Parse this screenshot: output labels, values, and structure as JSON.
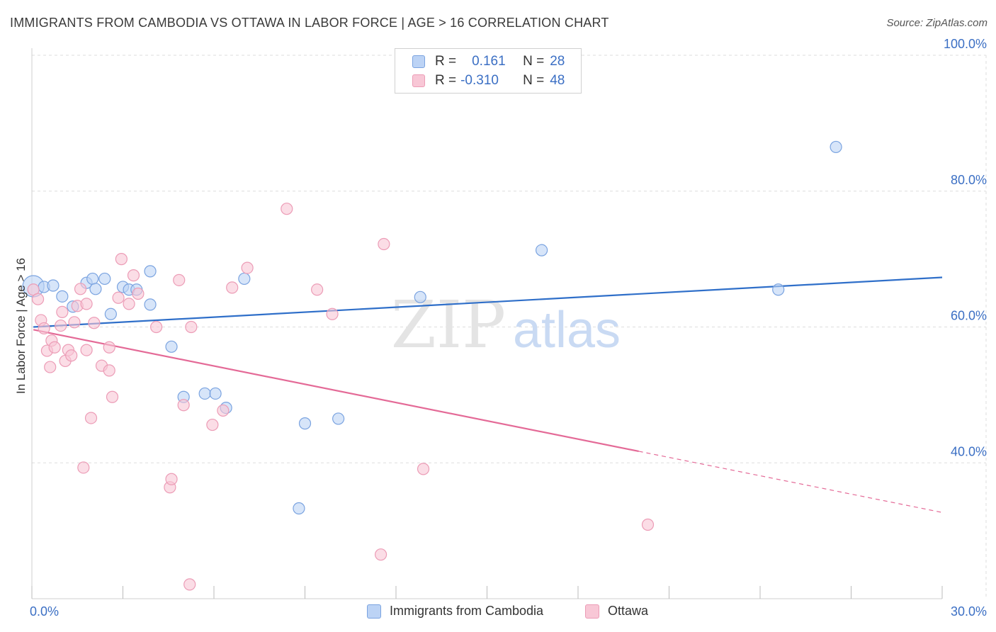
{
  "title": "IMMIGRANTS FROM CAMBODIA VS OTTAWA IN LABOR FORCE | AGE > 16 CORRELATION CHART",
  "source": "Source: ZipAtlas.com",
  "watermark": {
    "zip": "ZIP",
    "atlas": "atlas"
  },
  "legend": {
    "rows": [
      {
        "r_label": "R =",
        "r_value": "0.161",
        "n_label": "N =",
        "n_value": "28"
      },
      {
        "r_label": "R =",
        "r_value": "-0.310",
        "n_label": "N =",
        "n_value": "48"
      }
    ]
  },
  "colors": {
    "blue_fill": "#bcd3f5",
    "blue_stroke": "#7aa3e0",
    "blue_line": "#2f6fc9",
    "pink_fill": "#f8c7d6",
    "pink_stroke": "#ec9cb6",
    "pink_line": "#e46a97",
    "axis_text": "#3b6fc4",
    "grid": "#dddddd"
  },
  "chart_data": {
    "type": "scatter",
    "title": "IMMIGRANTS FROM CAMBODIA VS OTTAWA IN LABOR FORCE | AGE > 16 CORRELATION CHART",
    "xlabel": "",
    "ylabel": "In Labor Force | Age > 16",
    "xlim": [
      0,
      30
    ],
    "ylim": [
      20,
      100
    ],
    "x_tick_labels": [
      "0.0%",
      "30.0%"
    ],
    "y_ticks": [
      40,
      60,
      80,
      100
    ],
    "y_tick_labels": [
      "40.0%",
      "60.0%",
      "80.0%",
      "100.0%"
    ],
    "legend_position": "top-center",
    "series": [
      {
        "name": "Immigrants from Cambodia",
        "color": "blue",
        "points": [
          {
            "x": 0.05,
            "y": 66.0,
            "big": true
          },
          {
            "x": 0.4,
            "y": 65.9
          },
          {
            "x": 0.7,
            "y": 66.1
          },
          {
            "x": 1.0,
            "y": 64.5
          },
          {
            "x": 1.35,
            "y": 63.0
          },
          {
            "x": 1.8,
            "y": 66.5
          },
          {
            "x": 2.0,
            "y": 67.1
          },
          {
            "x": 2.1,
            "y": 65.6
          },
          {
            "x": 2.4,
            "y": 67.1
          },
          {
            "x": 2.6,
            "y": 61.9
          },
          {
            "x": 3.0,
            "y": 65.9
          },
          {
            "x": 3.2,
            "y": 65.5
          },
          {
            "x": 3.45,
            "y": 65.5
          },
          {
            "x": 3.9,
            "y": 63.3
          },
          {
            "x": 3.9,
            "y": 68.2
          },
          {
            "x": 4.6,
            "y": 57.1
          },
          {
            "x": 5.0,
            "y": 49.7
          },
          {
            "x": 5.7,
            "y": 50.2
          },
          {
            "x": 6.05,
            "y": 50.2
          },
          {
            "x": 6.4,
            "y": 48.1
          },
          {
            "x": 7.0,
            "y": 67.1
          },
          {
            "x": 8.8,
            "y": 33.3
          },
          {
            "x": 9.0,
            "y": 45.8
          },
          {
            "x": 10.1,
            "y": 46.5
          },
          {
            "x": 12.8,
            "y": 64.4
          },
          {
            "x": 16.8,
            "y": 71.3
          },
          {
            "x": 24.6,
            "y": 65.5
          },
          {
            "x": 26.5,
            "y": 86.5
          }
        ],
        "trend": {
          "x": [
            0.05,
            30
          ],
          "y": [
            60.0,
            67.3
          ]
        }
      },
      {
        "name": "Ottawa",
        "color": "pink",
        "points": [
          {
            "x": 0.05,
            "y": 65.5
          },
          {
            "x": 0.2,
            "y": 64.1
          },
          {
            "x": 0.3,
            "y": 61.0
          },
          {
            "x": 0.4,
            "y": 59.8
          },
          {
            "x": 0.5,
            "y": 56.5
          },
          {
            "x": 0.6,
            "y": 54.1
          },
          {
            "x": 0.65,
            "y": 58.0
          },
          {
            "x": 0.75,
            "y": 57.0
          },
          {
            "x": 0.95,
            "y": 60.2
          },
          {
            "x": 1.0,
            "y": 62.2
          },
          {
            "x": 1.1,
            "y": 55.0
          },
          {
            "x": 1.2,
            "y": 56.6
          },
          {
            "x": 1.3,
            "y": 55.8
          },
          {
            "x": 1.4,
            "y": 60.7
          },
          {
            "x": 1.5,
            "y": 63.1
          },
          {
            "x": 1.6,
            "y": 65.6
          },
          {
            "x": 1.7,
            "y": 39.3
          },
          {
            "x": 1.8,
            "y": 56.6
          },
          {
            "x": 1.8,
            "y": 63.4
          },
          {
            "x": 1.95,
            "y": 46.6
          },
          {
            "x": 2.05,
            "y": 60.6
          },
          {
            "x": 2.3,
            "y": 54.3
          },
          {
            "x": 2.55,
            "y": 53.6
          },
          {
            "x": 2.55,
            "y": 57.0
          },
          {
            "x": 2.65,
            "y": 49.7
          },
          {
            "x": 2.85,
            "y": 64.3
          },
          {
            "x": 2.95,
            "y": 70.0
          },
          {
            "x": 3.2,
            "y": 63.4
          },
          {
            "x": 3.35,
            "y": 67.6
          },
          {
            "x": 3.5,
            "y": 64.9
          },
          {
            "x": 4.1,
            "y": 60.0
          },
          {
            "x": 4.55,
            "y": 36.4
          },
          {
            "x": 4.6,
            "y": 37.6
          },
          {
            "x": 4.85,
            "y": 66.9
          },
          {
            "x": 5.0,
            "y": 48.5
          },
          {
            "x": 5.2,
            "y": 22.1
          },
          {
            "x": 5.25,
            "y": 60.0
          },
          {
            "x": 5.95,
            "y": 45.6
          },
          {
            "x": 6.3,
            "y": 47.7
          },
          {
            "x": 6.6,
            "y": 65.8
          },
          {
            "x": 7.1,
            "y": 68.7
          },
          {
            "x": 8.4,
            "y": 77.4
          },
          {
            "x": 9.4,
            "y": 65.5
          },
          {
            "x": 9.9,
            "y": 61.9
          },
          {
            "x": 11.5,
            "y": 26.5
          },
          {
            "x": 11.6,
            "y": 72.2
          },
          {
            "x": 12.9,
            "y": 39.1
          },
          {
            "x": 20.3,
            "y": 30.9
          }
        ],
        "trend": {
          "x": [
            0.05,
            20.0
          ],
          "y": [
            59.6,
            41.7
          ]
        },
        "trend_dashed": {
          "x": [
            20.0,
            30
          ],
          "y": [
            41.7,
            32.7
          ]
        }
      }
    ]
  },
  "bottom_legend": {
    "items": [
      {
        "label": "Immigrants from Cambodia"
      },
      {
        "label": "Ottawa"
      }
    ]
  }
}
